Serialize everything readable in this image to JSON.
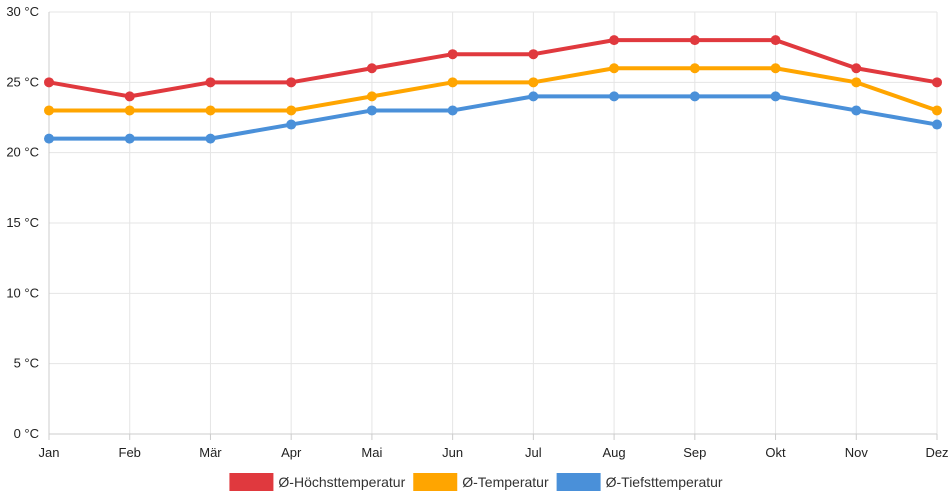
{
  "chart_data": {
    "type": "line",
    "title": "",
    "xlabel": "",
    "ylabel": "",
    "categories": [
      "Jan",
      "Feb",
      "Mär",
      "Apr",
      "Mai",
      "Jun",
      "Jul",
      "Aug",
      "Sep",
      "Okt",
      "Nov",
      "Dez"
    ],
    "ylim": [
      0,
      30
    ],
    "yticks": [
      0,
      5,
      10,
      15,
      20,
      25,
      30
    ],
    "ytick_labels": [
      "0 °C",
      "5 °C",
      "10 °C",
      "15 °C",
      "20 °C",
      "25 °C",
      "30 °C"
    ],
    "grid": true,
    "legend_position": "bottom-center",
    "series": [
      {
        "name": "Ø-Höchsttemperatur",
        "color": "#e0393e",
        "values": [
          25,
          24,
          25,
          25,
          26,
          27,
          27,
          28,
          28,
          28,
          26,
          25
        ]
      },
      {
        "name": "Ø-Temperatur",
        "color": "#ffa500",
        "values": [
          23,
          23,
          23,
          23,
          24,
          25,
          25,
          26,
          26,
          26,
          25,
          23
        ]
      },
      {
        "name": "Ø-Tiefsttemperatur",
        "color": "#4a90d9",
        "values": [
          21,
          21,
          21,
          22,
          23,
          23,
          24,
          24,
          24,
          24,
          23,
          22
        ]
      }
    ]
  }
}
